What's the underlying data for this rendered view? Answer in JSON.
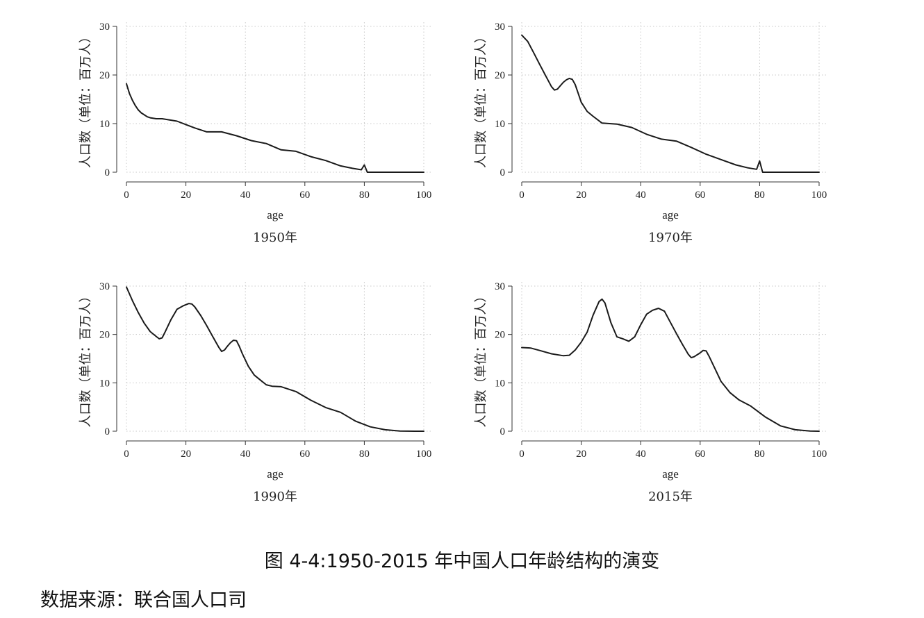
{
  "caption": "图 4-4:1950-2015 年中国人口年龄结构的演变",
  "source": "数据来源：联合国人口司",
  "chart_data": [
    {
      "type": "line",
      "title": "1950年",
      "xlabel": "age",
      "ylabel": "人口数（单位：百万人）",
      "xlim": [
        0,
        100
      ],
      "ylim": [
        0,
        30
      ],
      "xticks": [
        0,
        20,
        40,
        60,
        80,
        100
      ],
      "yticks": [
        0,
        10,
        20,
        30
      ],
      "grid": true,
      "series": [
        {
          "x": [
            0,
            1,
            2,
            3,
            4,
            5,
            6,
            7,
            8,
            10,
            12,
            14,
            17,
            20,
            23,
            27,
            32,
            37,
            42,
            47,
            52,
            57,
            62,
            67,
            72,
            76,
            79,
            80,
            81,
            85,
            90,
            95,
            100
          ],
          "y": [
            18.2,
            16.2,
            14.8,
            13.7,
            12.8,
            12.2,
            11.8,
            11.4,
            11.2,
            11.0,
            11.0,
            10.8,
            10.5,
            9.8,
            9.1,
            8.3,
            8.3,
            7.5,
            6.5,
            5.9,
            4.6,
            4.3,
            3.2,
            2.4,
            1.3,
            0.8,
            0.5,
            1.5,
            0.0,
            0.0,
            0.0,
            0.0,
            0.0
          ]
        }
      ]
    },
    {
      "type": "line",
      "title": "1970年",
      "xlabel": "age",
      "ylabel": "人口数（单位：百万人）",
      "xlim": [
        0,
        100
      ],
      "ylim": [
        0,
        30
      ],
      "xticks": [
        0,
        20,
        40,
        60,
        80,
        100
      ],
      "yticks": [
        0,
        10,
        20,
        30
      ],
      "grid": true,
      "series": [
        {
          "x": [
            0,
            2,
            4,
            6,
            8,
            10,
            11,
            12,
            13,
            14,
            15,
            16,
            17,
            18,
            19,
            20,
            22,
            24,
            27,
            32,
            37,
            42,
            47,
            52,
            57,
            62,
            67,
            72,
            76,
            79,
            80,
            81,
            85,
            90,
            95,
            100
          ],
          "y": [
            28.2,
            26.9,
            24.6,
            22.2,
            19.9,
            17.6,
            16.9,
            17.1,
            17.8,
            18.5,
            19.0,
            19.3,
            19.1,
            18.0,
            16.2,
            14.4,
            12.5,
            11.5,
            10.1,
            9.9,
            9.2,
            7.8,
            6.8,
            6.4,
            5.1,
            3.7,
            2.6,
            1.5,
            0.9,
            0.6,
            2.3,
            0.0,
            0.0,
            0.0,
            0.0,
            0.0
          ]
        }
      ]
    },
    {
      "type": "line",
      "title": "1990年",
      "xlabel": "age",
      "ylabel": "人口数（单位：百万人）",
      "xlim": [
        0,
        100
      ],
      "ylim": [
        0,
        30
      ],
      "xticks": [
        0,
        20,
        40,
        60,
        80,
        100
      ],
      "yticks": [
        0,
        10,
        20,
        30
      ],
      "grid": true,
      "series": [
        {
          "x": [
            0,
            2,
            4,
            6,
            8,
            10,
            11,
            12,
            13,
            15,
            17,
            19,
            21,
            22,
            23,
            25,
            27,
            29,
            31,
            32,
            33,
            34,
            35,
            36,
            37,
            38,
            39,
            41,
            43,
            45,
            47,
            49,
            52,
            57,
            62,
            67,
            72,
            77,
            82,
            87,
            92,
            97,
            100
          ],
          "y": [
            29.8,
            27.0,
            24.5,
            22.3,
            20.6,
            19.6,
            19.1,
            19.3,
            20.5,
            23.1,
            25.2,
            25.9,
            26.4,
            26.3,
            25.7,
            23.9,
            21.8,
            19.6,
            17.4,
            16.5,
            16.8,
            17.6,
            18.3,
            18.8,
            18.7,
            17.5,
            16.0,
            13.4,
            11.6,
            10.6,
            9.6,
            9.3,
            9.2,
            8.2,
            6.4,
            4.9,
            3.9,
            2.1,
            0.9,
            0.3,
            0.05,
            0.0,
            0.0
          ]
        }
      ]
    },
    {
      "type": "line",
      "title": "2015年",
      "xlabel": "age",
      "ylabel": "人口数（单位：百万人）",
      "xlim": [
        0,
        100
      ],
      "ylim": [
        0,
        30
      ],
      "xticks": [
        0,
        20,
        40,
        60,
        80,
        100
      ],
      "yticks": [
        0,
        10,
        20,
        30
      ],
      "grid": true,
      "series": [
        {
          "x": [
            0,
            3,
            6,
            10,
            14,
            16,
            18,
            20,
            22,
            24,
            26,
            27,
            28,
            30,
            32,
            34,
            36,
            38,
            40,
            42,
            44,
            46,
            48,
            50,
            52,
            54,
            56,
            57,
            58,
            60,
            61,
            62,
            63,
            65,
            67,
            70,
            73,
            77,
            82,
            87,
            92,
            97,
            100
          ],
          "y": [
            17.3,
            17.2,
            16.7,
            16.0,
            15.6,
            15.7,
            16.8,
            18.4,
            20.5,
            24.0,
            26.8,
            27.3,
            26.5,
            22.4,
            19.5,
            19.1,
            18.6,
            19.5,
            22.0,
            24.2,
            25.0,
            25.4,
            24.8,
            22.5,
            20.2,
            18.0,
            15.9,
            15.2,
            15.4,
            16.2,
            16.7,
            16.6,
            15.5,
            12.9,
            10.3,
            8.0,
            6.5,
            5.2,
            2.9,
            1.1,
            0.3,
            0.05,
            0.0
          ]
        }
      ]
    }
  ]
}
